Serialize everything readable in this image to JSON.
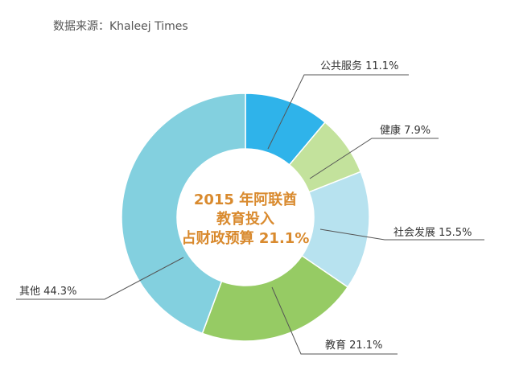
{
  "source": "数据来源：Khaleej Times",
  "chart_data": {
    "type": "pie",
    "donut": true,
    "center_text": [
      "2015 年阿联酋",
      "教育投入",
      "占财政预算 21.1%"
    ],
    "slices": [
      {
        "label": "公共服务 11.1%",
        "value": 11.1,
        "color": "#2fb3ea"
      },
      {
        "label": "健康 7.9%",
        "value": 7.9,
        "color": "#c3e29c"
      },
      {
        "label": "社会发展 15.5%",
        "value": 15.5,
        "color": "#b7e2ef"
      },
      {
        "label": "教育 21.1%",
        "value": 21.1,
        "color": "#96cb64"
      },
      {
        "label": "其他 44.3%",
        "value": 44.3,
        "color": "#83d0df"
      }
    ]
  }
}
